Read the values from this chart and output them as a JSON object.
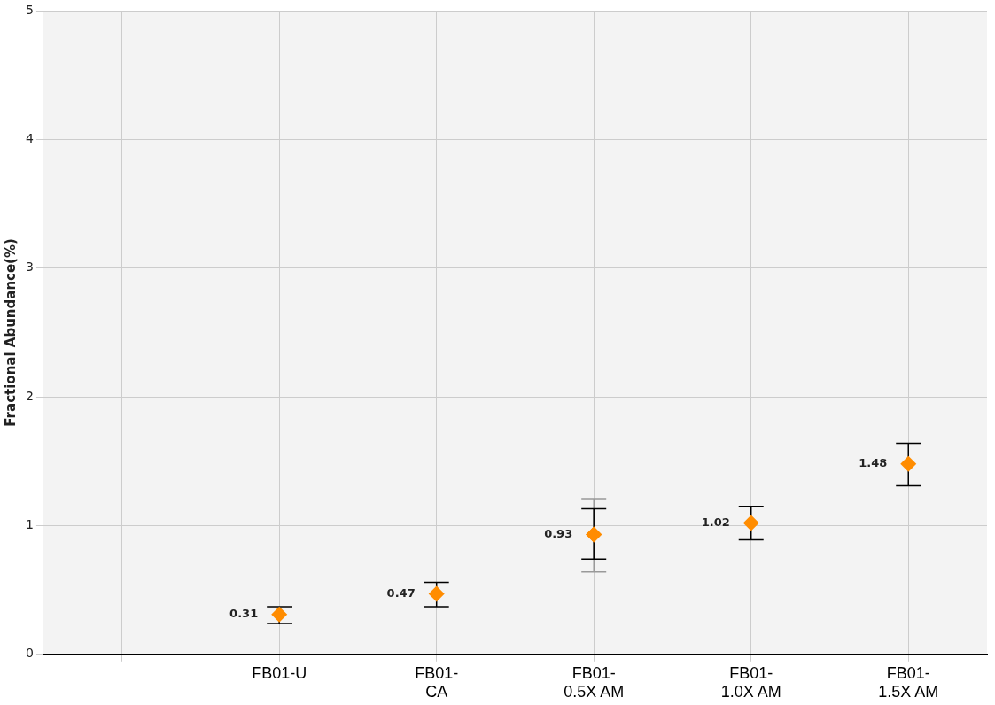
{
  "chart_data": {
    "type": "scatter",
    "ylabel": "Fractional Abundance(%)",
    "categories": [
      null,
      "FB01-U",
      "FB01-\nCA",
      "FB01-\n0.5X AM",
      "FB01-\n1.0X AM",
      "FB01-\n1.5X AM"
    ],
    "series": [
      {
        "color": "#ff8c00",
        "values": [
          null,
          0.31,
          0.47,
          0.93,
          1.02,
          1.48
        ],
        "errors": [
          null,
          [
            0.24,
            0.37
          ],
          [
            0.37,
            0.56
          ],
          [
            0.74,
            1.13
          ],
          [
            0.89,
            1.15
          ],
          [
            1.31,
            1.64
          ]
        ],
        "marker": "diamond",
        "data_labels": true
      },
      {
        "color": "#ff8c00",
        "values": [
          null,
          null,
          null,
          0.93,
          null,
          null
        ],
        "errors": [
          null,
          null,
          null,
          [
            0.64,
            1.21
          ],
          null,
          null
        ],
        "marker": "diamond"
      }
    ],
    "ylim": [
      0,
      5
    ],
    "yticks": [
      0,
      1,
      2,
      3,
      4,
      5
    ],
    "grid": true,
    "legend": false
  }
}
